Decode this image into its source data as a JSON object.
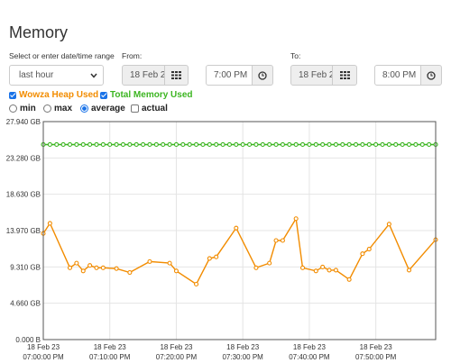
{
  "page": {
    "title": "Memory"
  },
  "range": {
    "label": "Select or enter date/time range",
    "selected": "last hour"
  },
  "from": {
    "label": "From:",
    "date": "18 Feb 2",
    "time": "7:00 PM"
  },
  "to": {
    "label": "To:",
    "date": "18 Feb 2",
    "time": "8:00 PM"
  },
  "legend": [
    {
      "label": "Wowza Heap Used",
      "checked": true,
      "color": "#f28c00"
    },
    {
      "label": "Total Memory Used",
      "checked": true,
      "color": "#3cb521"
    }
  ],
  "modes": [
    {
      "label": "min",
      "selected": false
    },
    {
      "label": "max",
      "selected": false
    },
    {
      "label": "average",
      "selected": true
    },
    {
      "label": "actual",
      "kind": "checkbox",
      "checked": false
    }
  ],
  "chart_data": {
    "type": "line",
    "ylim": [
      0,
      27.94
    ],
    "y_ticks": [
      {
        "value": 0,
        "label": "0.000 B"
      },
      {
        "value": 4.66,
        "label": "4.660 GB"
      },
      {
        "value": 9.31,
        "label": "9.310 GB"
      },
      {
        "value": 13.97,
        "label": "13.970 GB"
      },
      {
        "value": 18.63,
        "label": "18.630 GB"
      },
      {
        "value": 23.28,
        "label": "23.280 GB"
      },
      {
        "value": 27.94,
        "label": "27.940 GB"
      }
    ],
    "xlim": [
      0,
      59
    ],
    "x_ticks": [
      {
        "value": 0,
        "date": "18 Feb 23",
        "time": "07:00:00 PM"
      },
      {
        "value": 10,
        "date": "18 Feb 23",
        "time": "07:10:00 PM"
      },
      {
        "value": 20,
        "date": "18 Feb 23",
        "time": "07:20:00 PM"
      },
      {
        "value": 30,
        "date": "18 Feb 23",
        "time": "07:30:00 PM"
      },
      {
        "value": 40,
        "date": "18 Feb 23",
        "time": "07:40:00 PM"
      },
      {
        "value": 50,
        "date": "18 Feb 23",
        "time": "07:50:00 PM"
      }
    ],
    "series": [
      {
        "name": "Total Memory Used",
        "color": "#3cb521",
        "points": [
          [
            0,
            25.0
          ],
          [
            1,
            25.0
          ],
          [
            2,
            25.0
          ],
          [
            3,
            25.0
          ],
          [
            4,
            25.0
          ],
          [
            5,
            25.0
          ],
          [
            6,
            25.0
          ],
          [
            7,
            25.0
          ],
          [
            8,
            25.0
          ],
          [
            9,
            25.0
          ],
          [
            10,
            25.0
          ],
          [
            11,
            25.0
          ],
          [
            12,
            25.0
          ],
          [
            13,
            25.0
          ],
          [
            14,
            25.0
          ],
          [
            15,
            25.0
          ],
          [
            16,
            25.0
          ],
          [
            17,
            25.0
          ],
          [
            18,
            25.0
          ],
          [
            19,
            25.0
          ],
          [
            20,
            25.0
          ],
          [
            21,
            25.0
          ],
          [
            22,
            25.0
          ],
          [
            23,
            25.0
          ],
          [
            24,
            25.0
          ],
          [
            25,
            25.0
          ],
          [
            26,
            25.0
          ],
          [
            27,
            25.0
          ],
          [
            28,
            25.0
          ],
          [
            29,
            25.0
          ],
          [
            30,
            25.0
          ],
          [
            31,
            25.0
          ],
          [
            32,
            25.0
          ],
          [
            33,
            25.0
          ],
          [
            34,
            25.0
          ],
          [
            35,
            25.0
          ],
          [
            36,
            25.0
          ],
          [
            37,
            25.0
          ],
          [
            38,
            25.0
          ],
          [
            39,
            25.0
          ],
          [
            40,
            25.0
          ],
          [
            41,
            25.0
          ],
          [
            42,
            25.0
          ],
          [
            43,
            25.0
          ],
          [
            44,
            25.0
          ],
          [
            45,
            25.0
          ],
          [
            46,
            25.0
          ],
          [
            47,
            25.0
          ],
          [
            48,
            25.0
          ],
          [
            49,
            25.0
          ],
          [
            50,
            25.0
          ],
          [
            51,
            25.0
          ],
          [
            52,
            25.0
          ],
          [
            53,
            25.0
          ],
          [
            54,
            25.0
          ],
          [
            55,
            25.0
          ],
          [
            56,
            25.0
          ],
          [
            57,
            25.0
          ],
          [
            58,
            25.0
          ],
          [
            59,
            25.0
          ]
        ]
      },
      {
        "name": "Wowza Heap Used",
        "color": "#f28c00",
        "points": [
          [
            0,
            13.6
          ],
          [
            1,
            14.9
          ],
          [
            4,
            9.2
          ],
          [
            5,
            9.8
          ],
          [
            6,
            8.8
          ],
          [
            7,
            9.5
          ],
          [
            8,
            9.2
          ],
          [
            9,
            9.2
          ],
          [
            11,
            9.1
          ],
          [
            13,
            8.6
          ],
          [
            16,
            10.0
          ],
          [
            19,
            9.8
          ],
          [
            20,
            8.8
          ],
          [
            23,
            7.1
          ],
          [
            25,
            10.4
          ],
          [
            26,
            10.6
          ],
          [
            29,
            14.3
          ],
          [
            32,
            9.2
          ],
          [
            34,
            9.8
          ],
          [
            35,
            12.7
          ],
          [
            36,
            12.7
          ],
          [
            38,
            15.5
          ],
          [
            39,
            9.2
          ],
          [
            41,
            8.8
          ],
          [
            42,
            9.3
          ],
          [
            43,
            8.9
          ],
          [
            44,
            8.9
          ],
          [
            46,
            7.7
          ],
          [
            48,
            11.0
          ],
          [
            49,
            11.6
          ],
          [
            52,
            14.8
          ],
          [
            55,
            8.9
          ],
          [
            59,
            12.8
          ]
        ]
      }
    ]
  }
}
